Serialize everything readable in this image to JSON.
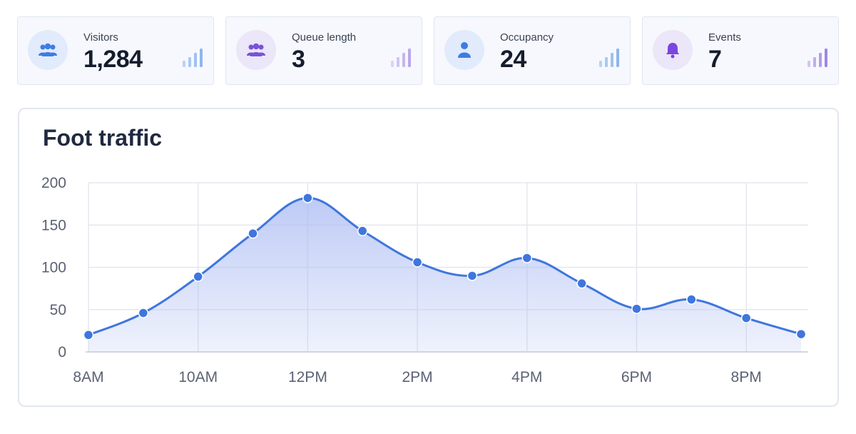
{
  "kpis": [
    {
      "label": "Visitors",
      "value": "1,284",
      "icon": "users-icon",
      "accent": "#3f7be6",
      "bars_color": "#9ec1f0"
    },
    {
      "label": "Queue length",
      "value": "3",
      "icon": "users-icon",
      "accent": "#7a52d9",
      "bars_color": "#c8b5ef"
    },
    {
      "label": "Occupancy",
      "value": "24",
      "icon": "user-icon",
      "accent": "#3f7be6",
      "bars_color": "#9ec1f0"
    },
    {
      "label": "Events",
      "value": "7",
      "icon": "bell-icon",
      "accent": "#7a45e0",
      "bars_color": "#b49be9"
    }
  ],
  "chart_data": {
    "type": "line",
    "title": "Foot traffic",
    "x": [
      "8AM",
      "9AM",
      "10AM",
      "11AM",
      "12PM",
      "1PM",
      "2PM",
      "3PM",
      "4PM",
      "5PM",
      "6PM",
      "7PM",
      "8PM",
      "9PM"
    ],
    "x_tick_labels": [
      "8AM",
      "10AM",
      "12PM",
      "2PM",
      "4PM",
      "6PM",
      "8PM"
    ],
    "series": [
      {
        "values": [
          20,
          46,
          89,
          140,
          182,
          143,
          106,
          90,
          111,
          81,
          51,
          62,
          40,
          21
        ]
      }
    ],
    "ylim": [
      0,
      200
    ],
    "y_ticks": [
      0,
      50,
      100,
      150,
      200
    ],
    "grid": true,
    "line_color": "#3f76dd",
    "fill_color": "#a8b9f2"
  }
}
